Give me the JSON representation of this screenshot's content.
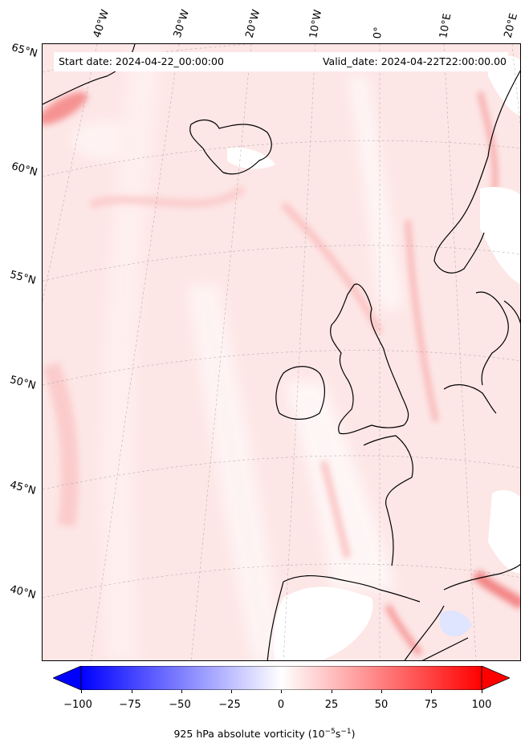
{
  "header": {
    "start_date": "Start date: 2024-04-22_00:00:00",
    "valid_date": "Valid_date: 2024-04-22T22:00:00.00"
  },
  "longitude_labels": [
    "40°W",
    "30°W",
    "20°W",
    "10°W",
    "0°",
    "10°E",
    "20°E"
  ],
  "latitude_labels": [
    "65°N",
    "60°N",
    "55°N",
    "50°N",
    "45°N",
    "40°N"
  ],
  "colorbar": {
    "label": "925 hPa absolute vorticity (10",
    "label_exp1": "−5",
    "label_mid": "s",
    "label_exp2": "−1",
    "label_end": ")",
    "ticks": [
      "−100",
      "−75",
      "−50",
      "−25",
      "0",
      "25",
      "50",
      "75",
      "100"
    ],
    "tick_values": [
      -100,
      -75,
      -50,
      -25,
      0,
      25,
      50,
      75,
      100
    ],
    "range": [
      -100,
      100
    ],
    "colormap": "bwr",
    "extend": "both",
    "negative_color": "#0000ff",
    "zero_color": "#ffffff",
    "positive_color": "#ff0000"
  },
  "colors": {
    "background_field": "#fde8e8",
    "coastline": "#000000",
    "gridline": "#b0b0b0"
  }
}
